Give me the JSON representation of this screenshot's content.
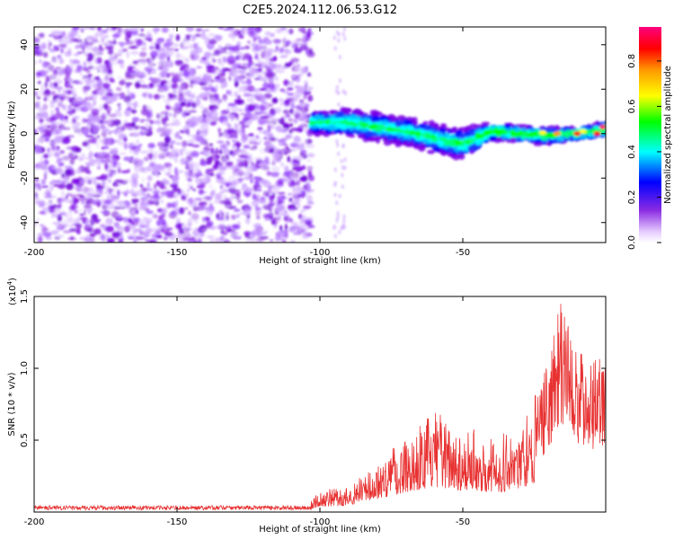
{
  "title": "C2E5.2024.112.06.53.G12",
  "chart_data": [
    {
      "type": "heatmap",
      "xlabel": "Height of straight line (km)",
      "ylabel": "Frequency (Hz)",
      "xlim": [
        -200,
        0
      ],
      "ylim": [
        -49,
        48
      ],
      "x_ticks": [
        -200,
        -150,
        -100,
        -50
      ],
      "x_tick_labels": [
        "-200",
        "-150",
        "-100",
        "-50"
      ],
      "y_ticks": [
        -40,
        -20,
        0,
        20,
        40
      ],
      "y_tick_labels": [
        "-40",
        "-20",
        "0",
        "20",
        "40"
      ],
      "colorbar": {
        "label": "Normalized spectral amplitude",
        "range": [
          0,
          0.95
        ],
        "ticks": [
          0.0,
          0.2,
          0.4,
          0.6,
          0.8
        ],
        "tick_labels": [
          "0.0",
          "0.2",
          "0.4",
          "0.6",
          "0.8"
        ],
        "colormap": [
          "#ffffff",
          "#7a00e6",
          "#0000ff",
          "#00ffff",
          "#00ff00",
          "#ffff00",
          "#ff9900",
          "#ff0000",
          "#ff0080"
        ]
      },
      "description_points": {
        "noise_region_x": [
          -200,
          -103
        ],
        "signal_band": [
          {
            "x": -103,
            "y": 5,
            "width": 4
          },
          {
            "x": -90,
            "y": 5,
            "width": 5
          },
          {
            "x": -80,
            "y": 3,
            "width": 5
          },
          {
            "x": -70,
            "y": 1,
            "width": 5
          },
          {
            "x": -60,
            "y": -2,
            "width": 5
          },
          {
            "x": -50,
            "y": -5,
            "width": 6
          },
          {
            "x": -40,
            "y": 1,
            "width": 3
          },
          {
            "x": -30,
            "y": 0,
            "width": 3
          },
          {
            "x": -20,
            "y": -1,
            "width": 3
          },
          {
            "x": -10,
            "y": 0,
            "width": 2
          },
          {
            "x": 0,
            "y": 2,
            "width": 3
          }
        ]
      }
    },
    {
      "type": "line",
      "xlabel": "Height of straight line (km)",
      "ylabel": "SNR (10 * v/v)",
      "scale_label": "(x10",
      "scale_exponent": "4",
      "scale_close": ")",
      "xlim": [
        -200,
        0
      ],
      "ylim": [
        0,
        1.5
      ],
      "x_ticks": [
        -200,
        -150,
        -100,
        -50
      ],
      "x_tick_labels": [
        "-200",
        "-150",
        "-100",
        "-50"
      ],
      "y_ticks": [
        0.5,
        1.0,
        1.5
      ],
      "y_tick_labels": [
        "0.5",
        "1.0",
        "1.5"
      ],
      "color": "#e83232",
      "envelope": [
        {
          "x": -200,
          "y": 0.04
        },
        {
          "x": -150,
          "y": 0.04
        },
        {
          "x": -105,
          "y": 0.04
        },
        {
          "x": -100,
          "y": 0.15
        },
        {
          "x": -90,
          "y": 0.18
        },
        {
          "x": -80,
          "y": 0.35
        },
        {
          "x": -70,
          "y": 0.55
        },
        {
          "x": -60,
          "y": 0.7
        },
        {
          "x": -50,
          "y": 0.6
        },
        {
          "x": -40,
          "y": 0.55
        },
        {
          "x": -30,
          "y": 0.6
        },
        {
          "x": -20,
          "y": 1.05
        },
        {
          "x": -16,
          "y": 1.5
        },
        {
          "x": -10,
          "y": 1.15
        },
        {
          "x": -5,
          "y": 1.1
        },
        {
          "x": 0,
          "y": 1.05
        }
      ]
    }
  ]
}
